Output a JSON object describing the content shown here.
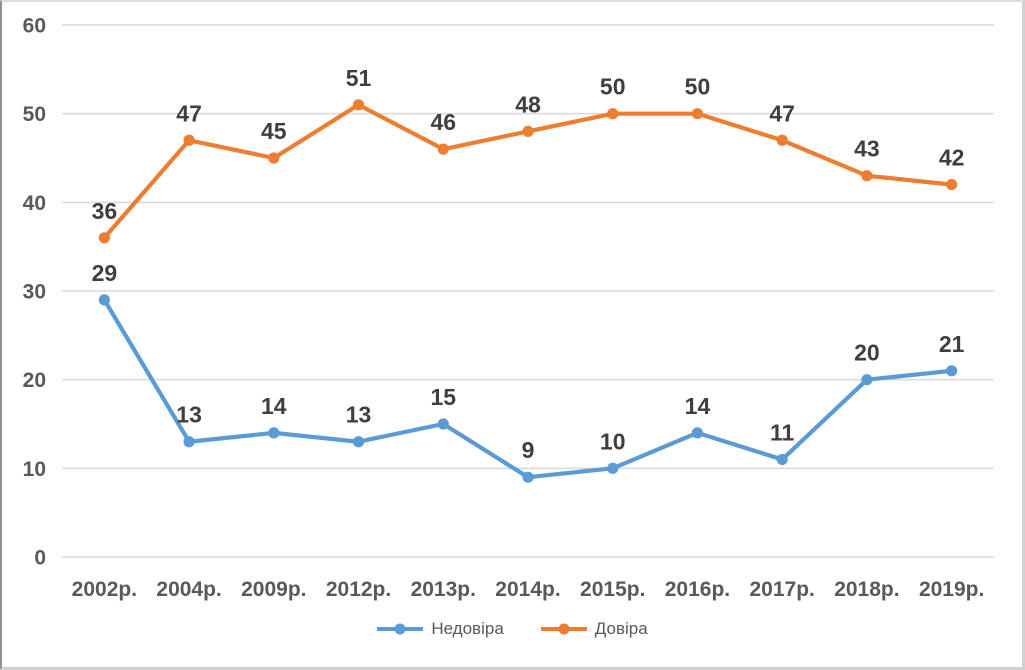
{
  "chart_data": {
    "type": "line",
    "title": "",
    "xlabel": "",
    "ylabel": "",
    "categories": [
      "2002р.",
      "2004р.",
      "2009р.",
      "2012р.",
      "2013р.",
      "2014р.",
      "2015р.",
      "2016р.",
      "2017р.",
      "2018р.",
      "2019р."
    ],
    "series": [
      {
        "name": "Недовіра",
        "color": "#5B9BD5",
        "values": [
          29,
          13,
          14,
          13,
          15,
          9,
          10,
          14,
          11,
          20,
          21
        ]
      },
      {
        "name": "Довіра",
        "color": "#ED7D31",
        "values": [
          36,
          47,
          45,
          51,
          46,
          48,
          50,
          50,
          47,
          43,
          42
        ]
      }
    ],
    "ylim": [
      0,
      60
    ],
    "yticks": [
      0,
      10,
      20,
      30,
      40,
      50,
      60
    ],
    "grid": true,
    "data_labels": true,
    "legend_position": "bottom"
  },
  "style": {
    "grid_color": "#d9d9d9",
    "axis_text_color": "#595959",
    "data_label_color": "#3f3f3f",
    "background": "#ffffff"
  }
}
